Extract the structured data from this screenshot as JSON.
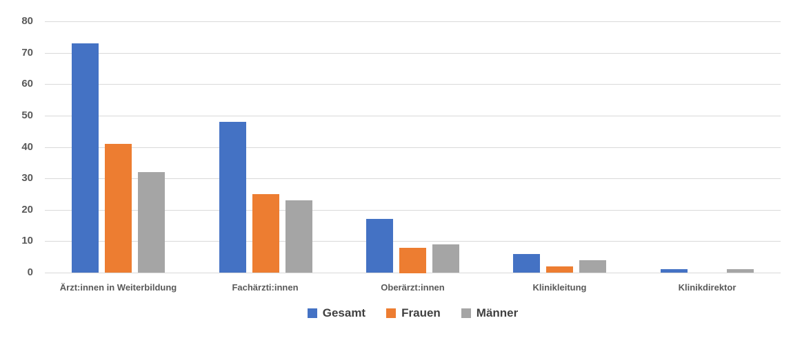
{
  "chart_data": {
    "type": "bar",
    "title": "",
    "categories": [
      "Ärzt:innen in Weiterbildung",
      "Fachärzti:innen",
      "Oberärzt:innen",
      "Klinikleitung",
      "Klinikdirektor"
    ],
    "series": [
      {
        "name": "Gesamt",
        "color": "#4472C4",
        "values": [
          73,
          48,
          17,
          6,
          1
        ]
      },
      {
        "name": "Frauen",
        "color": "#ED7D31",
        "values": [
          41,
          25,
          8,
          2,
          0
        ]
      },
      {
        "name": "Männer",
        "color": "#A5A5A5",
        "values": [
          32,
          23,
          9,
          4,
          1
        ]
      }
    ],
    "xlabel": "",
    "ylabel": "",
    "ylim": [
      0,
      80
    ],
    "ytick_step": 10,
    "yticks": [
      0,
      10,
      20,
      30,
      40,
      50,
      60,
      70,
      80
    ],
    "grid": true,
    "legend_position": "bottom",
    "colors": {
      "gridline": "#d9d9d9",
      "axis_text": "#595959",
      "legend_text": "#404040",
      "background": "#ffffff"
    }
  }
}
